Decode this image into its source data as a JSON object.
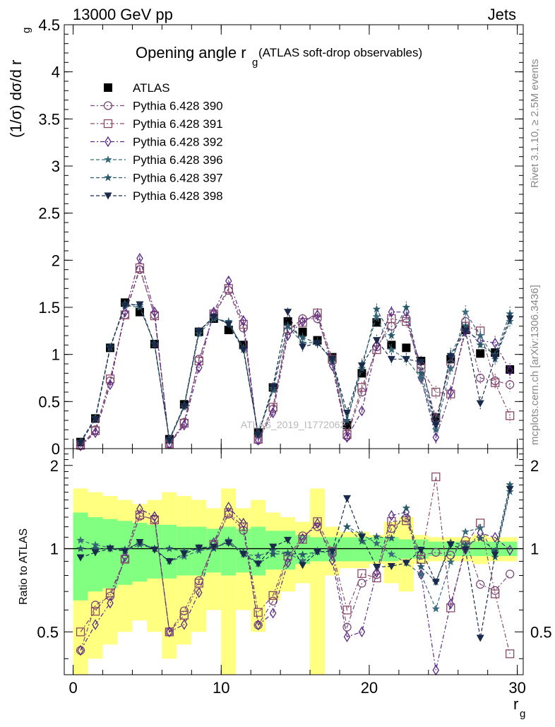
{
  "chart_data": {
    "type": "line",
    "header_left": "13000 GeV pp",
    "header_right": "Jets",
    "title_main": "Opening angle r",
    "title_sub": "g",
    "title_tail": " (ATLAS soft-drop observables)",
    "ylabel": "(1/σ) dσ/d r",
    "ylabel_sub": "g",
    "xlabel": "r",
    "xlabel_sub": "g",
    "ratio_ylabel": "Ratio to ATLAS",
    "watermark": "ATLAS_2019_I1772062",
    "side_text_top": "Rivet 3.1.10, ≥ 2.5M events",
    "side_text_bottom": "mcplots.cern.ch [arXiv:1306.3436]",
    "xlim": [
      -0.6,
      30.4
    ],
    "ylim": [
      0,
      4.5
    ],
    "ratio_ylim": [
      0.35,
      2.3
    ],
    "x_ticks": [
      0,
      10,
      20,
      30
    ],
    "y_ticks": [
      0,
      0.5,
      1,
      1.5,
      2,
      2.5,
      3,
      3.5,
      4,
      4.5
    ],
    "ratio_ticks": [
      0.5,
      1,
      2
    ],
    "colors": {
      "band_yellow": "#ffff80",
      "band_green": "#80ff80",
      "p390": "#7a4a7a",
      "p391": "#8a4a66",
      "p392": "#5a2a8a",
      "p396": "#3a6a7a",
      "p397": "#2a5a6a",
      "p398": "#1a2a4a"
    },
    "x": [
      0.5,
      1.5,
      2.5,
      3.5,
      4.5,
      5.5,
      6.5,
      7.5,
      8.5,
      9.5,
      10.5,
      11.5,
      12.5,
      13.5,
      14.5,
      15.5,
      16.5,
      17.5,
      18.5,
      19.5,
      20.5,
      21.5,
      22.5,
      23.5,
      24.5,
      25.5,
      26.5,
      27.5,
      28.5,
      29.5
    ],
    "atlas": [
      0.07,
      0.32,
      1.07,
      1.55,
      1.45,
      1.11,
      0.1,
      0.47,
      1.24,
      1.38,
      1.26,
      1.1,
      0.17,
      0.65,
      1.35,
      1.24,
      1.15,
      0.97,
      0.25,
      0.8,
      1.34,
      1.1,
      1.07,
      0.93,
      0.33,
      0.95,
      1.26,
      1.01,
      1.02,
      0.84
    ],
    "band_green_halfwidth": [
      0.35,
      0.3,
      0.28,
      0.26,
      0.24,
      0.22,
      0.22,
      0.2,
      0.2,
      0.18,
      0.2,
      0.18,
      0.2,
      0.16,
      0.16,
      0.12,
      0.1,
      0.1,
      0.1,
      0.1,
      0.1,
      0.1,
      0.08,
      0.08,
      0.06,
      0.06,
      0.06,
      0.06,
      0.06,
      0.06
    ],
    "band_yellow_halfwidth": [
      0.65,
      0.6,
      0.55,
      0.5,
      0.45,
      0.5,
      0.6,
      0.55,
      0.5,
      0.4,
      0.65,
      0.4,
      0.5,
      0.35,
      0.3,
      0.25,
      0.65,
      0.2,
      0.15,
      0.15,
      0.12,
      0.25,
      0.3,
      0.12,
      0.1,
      0.1,
      0.1,
      0.12,
      0.1,
      0.1
    ],
    "series": [
      {
        "name": "ATLAS",
        "marker": "square_filled",
        "values": [
          0.07,
          0.32,
          1.07,
          1.55,
          1.45,
          1.11,
          0.1,
          0.47,
          1.24,
          1.38,
          1.26,
          1.1,
          0.17,
          0.65,
          1.35,
          1.24,
          1.15,
          0.97,
          0.25,
          0.8,
          1.34,
          1.1,
          1.07,
          0.93,
          0.33,
          0.95,
          1.26,
          1.01,
          1.02,
          0.84
        ]
      },
      {
        "name": "Pythia 6.428 390",
        "marker": "circle_open",
        "color": "p390",
        "dash": "6,3,2,3",
        "values": [
          0.03,
          0.2,
          0.72,
          1.42,
          1.9,
          1.42,
          0.05,
          0.28,
          0.95,
          1.42,
          1.68,
          1.28,
          0.09,
          0.42,
          1.25,
          1.38,
          1.38,
          0.93,
          0.13,
          0.6,
          1.08,
          1.3,
          1.38,
          0.88,
          0.32,
          0.9,
          1.35,
          0.75,
          0.72,
          0.68
        ]
      },
      {
        "name": "Pythia 6.428 391",
        "marker": "square_open",
        "color": "p391",
        "dash": "6,3,2,3",
        "values": [
          0.035,
          0.19,
          0.74,
          1.42,
          1.92,
          1.41,
          0.05,
          0.27,
          0.93,
          1.43,
          1.7,
          1.32,
          0.1,
          0.44,
          1.27,
          1.34,
          1.44,
          0.95,
          0.15,
          0.65,
          1.05,
          1.38,
          1.35,
          0.85,
          0.6,
          0.58,
          1.3,
          1.25,
          0.7,
          0.35
        ]
      },
      {
        "name": "Pythia 6.428 392",
        "marker": "diamond_open",
        "color": "p392",
        "dash": "6,3,2,3",
        "values": [
          0.03,
          0.17,
          0.68,
          1.45,
          2.02,
          1.45,
          0.05,
          0.25,
          0.86,
          1.45,
          1.78,
          1.36,
          0.09,
          0.38,
          1.2,
          1.35,
          1.42,
          0.88,
          0.12,
          0.4,
          1.1,
          1.45,
          1.45,
          0.75,
          0.12,
          0.6,
          1.25,
          1.15,
          1.12,
          0.83
        ]
      },
      {
        "name": "Pythia 6.428 396",
        "marker": "star",
        "color": "p396",
        "dash": "5,3",
        "values": [
          0.075,
          0.33,
          1.08,
          1.52,
          1.5,
          1.11,
          0.09,
          0.44,
          1.22,
          1.38,
          1.35,
          1.05,
          0.16,
          0.64,
          1.3,
          1.12,
          1.13,
          0.93,
          0.3,
          0.9,
          1.4,
          1.05,
          0.95,
          0.75,
          0.2,
          0.85,
          1.45,
          1.2,
          0.95,
          1.35
        ]
      },
      {
        "name": "Pythia 6.428 397",
        "marker": "star",
        "color": "p397",
        "dash": "5,3",
        "values": [
          0.07,
          0.32,
          1.07,
          1.54,
          1.52,
          1.11,
          0.1,
          0.46,
          1.25,
          1.39,
          1.33,
          1.07,
          0.15,
          0.62,
          1.3,
          1.18,
          1.12,
          0.95,
          0.3,
          0.85,
          1.48,
          1.2,
          1.5,
          0.8,
          0.25,
          1.0,
          1.3,
          1.1,
          1.0,
          1.43
        ]
      },
      {
        "name": "Pythia 6.428 398",
        "marker": "triangle_down",
        "color": "p398",
        "dash": "5,3",
        "values": [
          0.065,
          0.31,
          1.07,
          1.52,
          1.53,
          1.1,
          0.09,
          0.45,
          1.25,
          1.4,
          1.32,
          1.05,
          0.15,
          0.66,
          1.45,
          1.08,
          1.12,
          0.95,
          0.38,
          0.88,
          1.15,
          0.95,
          0.95,
          0.92,
          0.25,
          0.98,
          1.25,
          0.48,
          0.97,
          1.38
        ]
      }
    ]
  }
}
